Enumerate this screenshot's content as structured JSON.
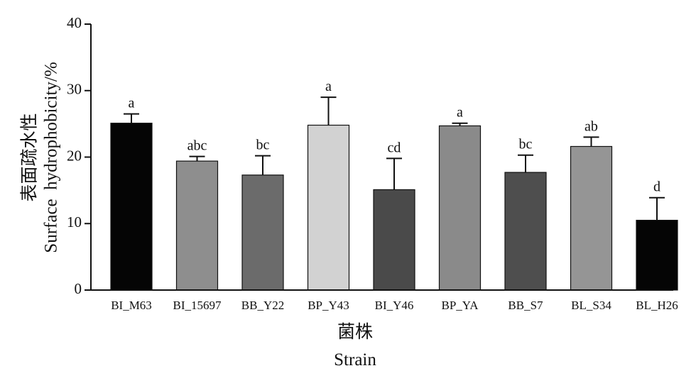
{
  "chart_data": {
    "type": "bar",
    "ylabel_cn": "表面疏水性",
    "ylabel_en": "Surface  hydrophobicity/%",
    "xlabel_cn": "菌株",
    "xlabel_en": "Strain",
    "ylim": [
      0,
      40
    ],
    "yticks": [
      0,
      10,
      20,
      30,
      40
    ],
    "categories": [
      "BI_M63",
      "BI_15697",
      "BB_Y22",
      "BP_Y43",
      "BI_Y46",
      "BP_YA",
      "BB_S7",
      "BL_S34",
      "BL_H26"
    ],
    "values": [
      25.1,
      19.4,
      17.3,
      24.8,
      15.1,
      24.7,
      17.7,
      21.6,
      10.5
    ],
    "errors": [
      1.4,
      0.7,
      2.9,
      4.2,
      4.7,
      0.4,
      2.6,
      1.4,
      3.4
    ],
    "significance": [
      "a",
      "abc",
      "bc",
      "a",
      "cd",
      "a",
      "bc",
      "ab",
      "d"
    ],
    "colors": [
      "#050505",
      "#8e8e8e",
      "#6b6b6b",
      "#d2d2d2",
      "#4a4a4a",
      "#8a8a8a",
      "#4e4e4e",
      "#959595",
      "#050505"
    ],
    "grid": false,
    "legend": "none"
  }
}
